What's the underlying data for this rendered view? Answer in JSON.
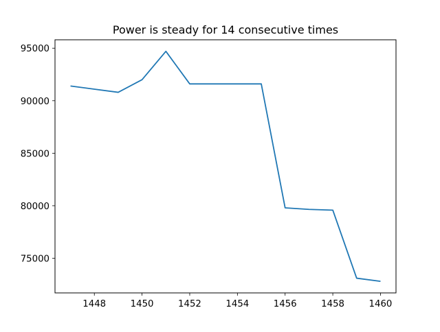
{
  "chart_data": {
    "type": "line",
    "title": "Power is steady for 14 consecutive times",
    "xlabel": "",
    "ylabel": "",
    "x": [
      1447,
      1448,
      1449,
      1450,
      1451,
      1452,
      1453,
      1454,
      1455,
      1456,
      1457,
      1458,
      1459,
      1460
    ],
    "series": [
      {
        "values": [
          91400,
          91100,
          90800,
          92000,
          94700,
          91600,
          91600,
          91600,
          91600,
          79800,
          79650,
          79580,
          73100,
          72800
        ],
        "color": "#1f77b4"
      }
    ],
    "xlim": [
      1446.35,
      1460.65
    ],
    "ylim": [
      71700,
      95800
    ],
    "xticks": [
      1448,
      1450,
      1452,
      1454,
      1456,
      1458,
      1460
    ],
    "yticks": [
      75000,
      80000,
      85000,
      90000,
      95000
    ],
    "grid": false
  }
}
